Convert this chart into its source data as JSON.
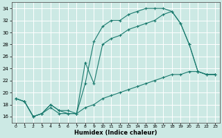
{
  "xlabel": "Humidex (Indice chaleur)",
  "xlim": [
    -0.5,
    23.5
  ],
  "ylim": [
    15.0,
    35.0
  ],
  "yticks": [
    16,
    18,
    20,
    22,
    24,
    26,
    28,
    30,
    32,
    34
  ],
  "xticks": [
    0,
    1,
    2,
    3,
    4,
    5,
    6,
    7,
    8,
    9,
    10,
    11,
    12,
    13,
    14,
    15,
    16,
    17,
    18,
    19,
    20,
    21,
    22,
    23
  ],
  "background_color": "#cce9e4",
  "grid_color": "#ffffff",
  "line_color": "#1a7a6e",
  "curve1_x": [
    0,
    1,
    2,
    3,
    4,
    5,
    6,
    7,
    8,
    9,
    10,
    11,
    12,
    13,
    14,
    15,
    16,
    17,
    18,
    19,
    20,
    21,
    22,
    23
  ],
  "curve1_y": [
    19.0,
    18.5,
    16.0,
    16.5,
    18.0,
    17.0,
    17.0,
    16.5,
    21.5,
    28.5,
    31.0,
    32.0,
    32.0,
    33.0,
    33.5,
    34.0,
    34.0,
    34.0,
    33.5,
    31.5,
    28.0,
    23.5,
    23.0,
    23.0
  ],
  "curve2_x": [
    0,
    1,
    2,
    3,
    4,
    5,
    6,
    7,
    8,
    9,
    10,
    11,
    12,
    13,
    14,
    15,
    16,
    17,
    18,
    19,
    20,
    21,
    22,
    23
  ],
  "curve2_y": [
    19.0,
    18.5,
    16.0,
    16.5,
    18.0,
    17.0,
    16.5,
    16.5,
    25.0,
    21.5,
    28.0,
    29.0,
    29.5,
    30.5,
    31.0,
    31.5,
    32.0,
    33.0,
    33.5,
    31.5,
    28.0,
    23.5,
    23.0,
    23.0
  ],
  "curve3_x": [
    0,
    1,
    2,
    3,
    4,
    5,
    6,
    7,
    8,
    9,
    10,
    11,
    12,
    13,
    14,
    15,
    16,
    17,
    18,
    19,
    20,
    21,
    22,
    23
  ],
  "curve3_y": [
    19.0,
    18.5,
    16.0,
    16.5,
    17.5,
    16.5,
    16.5,
    16.5,
    17.5,
    18.0,
    19.0,
    19.5,
    20.0,
    20.5,
    21.0,
    21.5,
    22.0,
    22.5,
    23.0,
    23.0,
    23.5,
    23.5,
    23.0,
    23.0
  ]
}
